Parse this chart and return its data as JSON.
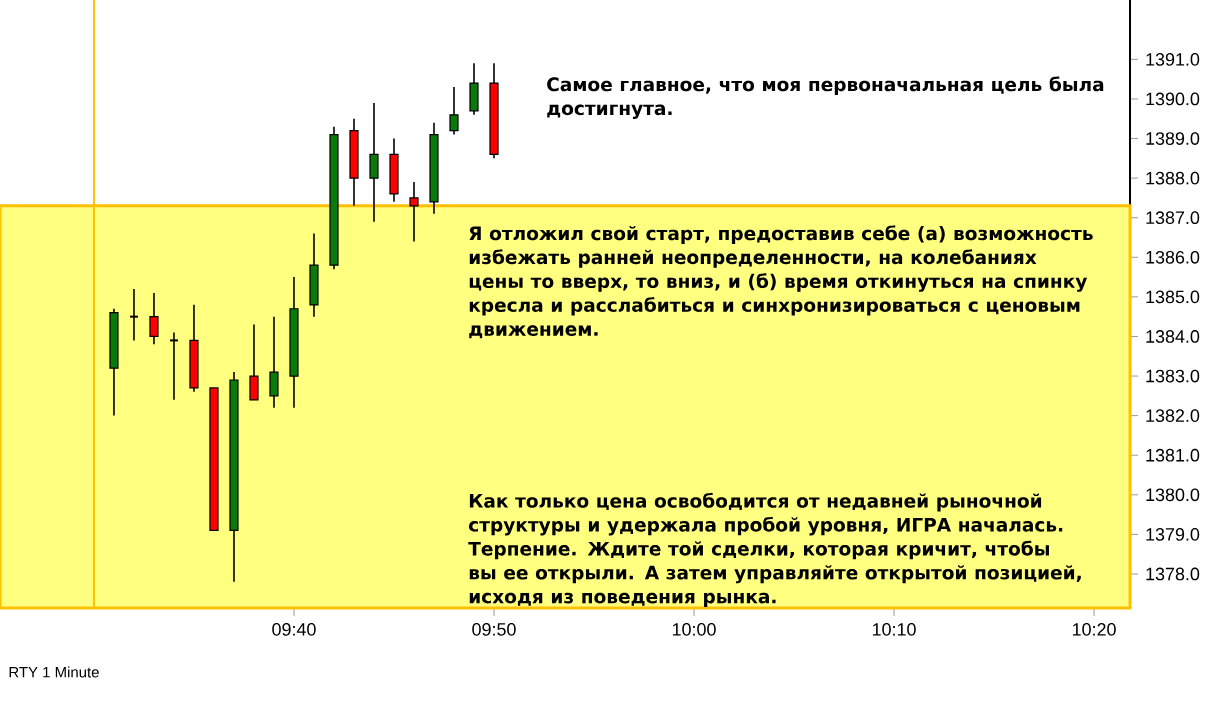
{
  "chart_data": {
    "type": "candlestick",
    "x": [
      9.516667,
      9.533333,
      9.55,
      9.566667,
      9.583333,
      9.6,
      9.616667,
      9.633333,
      9.65,
      9.666667,
      9.683333,
      9.7,
      9.716667,
      9.733333,
      9.75,
      9.766667,
      9.783333,
      9.8,
      9.816667,
      9.833333
    ],
    "ohlc": [
      [
        1383.2,
        1384.7,
        1382.0,
        1384.6
      ],
      [
        1384.5,
        1385.2,
        1383.9,
        1384.5
      ],
      [
        1384.5,
        1385.1,
        1383.8,
        1384.0
      ],
      [
        1383.9,
        1384.1,
        1382.4,
        1383.9
      ],
      [
        1383.9,
        1384.8,
        1382.6,
        1382.7
      ],
      [
        1382.7,
        1382.7,
        1379.1,
        1379.1
      ],
      [
        1379.1,
        1383.1,
        1377.8,
        1382.9
      ],
      [
        1383.0,
        1384.3,
        1382.4,
        1382.4
      ],
      [
        1382.5,
        1384.5,
        1382.2,
        1383.1
      ],
      [
        1383.0,
        1385.5,
        1382.2,
        1384.7
      ],
      [
        1384.8,
        1386.6,
        1384.5,
        1385.8
      ],
      [
        1385.8,
        1389.3,
        1385.7,
        1389.1
      ],
      [
        1389.2,
        1389.5,
        1387.3,
        1388.0
      ],
      [
        1388.0,
        1389.9,
        1386.9,
        1388.6
      ],
      [
        1388.6,
        1389.0,
        1387.4,
        1387.6
      ],
      [
        1387.5,
        1387.9,
        1386.4,
        1387.3
      ],
      [
        1387.4,
        1389.4,
        1387.1,
        1389.1
      ],
      [
        1389.2,
        1390.3,
        1389.1,
        1389.6
      ],
      [
        1389.7,
        1390.9,
        1389.6,
        1390.4
      ],
      [
        1390.4,
        1390.9,
        1388.5,
        1388.6
      ]
    ],
    "colors": [
      "#0a7a0a",
      "#000000",
      "#ff0000",
      "#000000",
      "#ff0000",
      "#ff0000",
      "#0a7a0a",
      "#ff0000",
      "#0a7a0a",
      "#0a7a0a",
      "#0a7a0a",
      "#0a7a0a",
      "#ff0000",
      "#0a7a0a",
      "#ff0000",
      "#ff0000",
      "#0a7a0a",
      "#0a7a0a",
      "#0a7a0a",
      "#ff0000"
    ],
    "xlim": [
      9.4217,
      10.3633
    ],
    "xticks": [
      {
        "value": 9.666667,
        "label": "09:40"
      },
      {
        "value": 9.833333,
        "label": "09:50"
      },
      {
        "value": 10.0,
        "label": "10:00"
      },
      {
        "value": 10.166667,
        "label": "10:10"
      },
      {
        "value": 10.333333,
        "label": "10:20"
      }
    ],
    "ylim": [
      1377.14,
      1392.5
    ],
    "yticks": [
      {
        "value": 1378,
        "label": "1378.0"
      },
      {
        "value": 1379,
        "label": "1379.0"
      },
      {
        "value": 1380,
        "label": "1380.0"
      },
      {
        "value": 1381,
        "label": "1381.0"
      },
      {
        "value": 1382,
        "label": "1382.0"
      },
      {
        "value": 1383,
        "label": "1383.0"
      },
      {
        "value": 1384,
        "label": "1384.0"
      },
      {
        "value": 1385,
        "label": "1385.0"
      },
      {
        "value": 1386,
        "label": "1386.0"
      },
      {
        "value": 1387,
        "label": "1387.0"
      },
      {
        "value": 1388,
        "label": "1388.0"
      },
      {
        "value": 1389,
        "label": "1389.0"
      },
      {
        "value": 1390,
        "label": "1390.0"
      },
      {
        "value": 1391,
        "label": "1391.0"
      }
    ],
    "ref_lines": [
      {
        "axis": "x",
        "value": 9.5,
        "color": "#ffc000"
      }
    ],
    "bands": [
      {
        "axis": "y",
        "from": 1377.14,
        "to": 1387.3,
        "color": "#ffff80"
      }
    ],
    "grid": false,
    "annotations": [
      "Самое главное, что моя первоначальная цель была достигнута.",
      "Я отложил свой старт, предоставив себе (а) возможность избежать ранней неопределенности, на колебаниях цены то вверх, то вниз, и (б) время откинуться на спинку кресла и расслабиться и синхронизироваться с ценовым движением.",
      "Как только цена освободится от недавней рыночной структуры и удержала пробой уровня, ИГРА началась. Терпение. Ждите той сделки, которая кричит, чтобы вы ее открыли. А затем управляйте открытой позицией, исходя из поведения рынка.",
      "RTY 1 Minute"
    ]
  }
}
